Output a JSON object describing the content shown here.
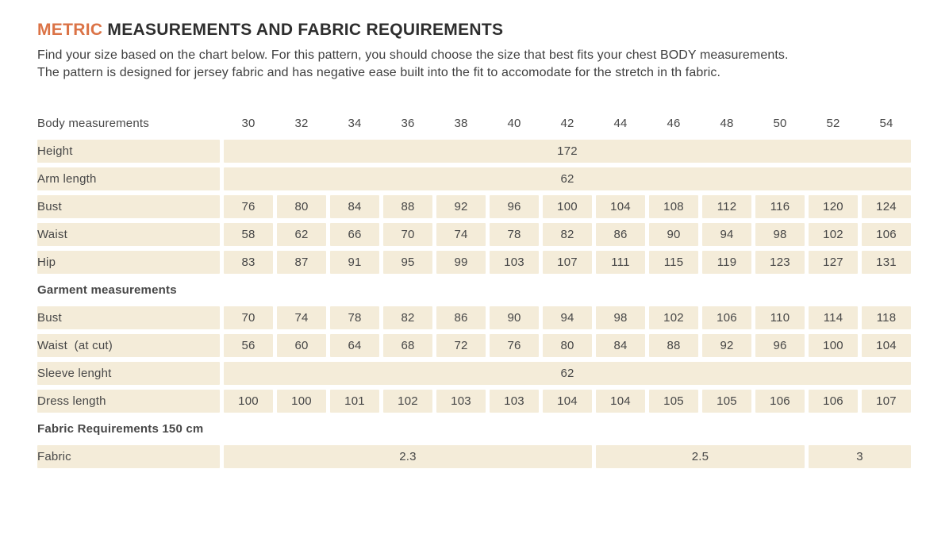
{
  "page": {
    "title": {
      "accent": "METRIC",
      "rest": " MEASUREMENTS AND FABRIC REQUIREMENTS"
    },
    "intro": {
      "line1": "Find your size based on the chart below. For this pattern, you should choose the size that best fits your chest BODY measurements.",
      "line2": "The pattern is designed for jersey fabric and has negative ease built into the fit to accomodate for the stretch in th fabric."
    }
  },
  "colors": {
    "accent_orange": "#db7346",
    "cell_beige": "#f4ecd9",
    "title_ink": "#2e2e2e"
  },
  "table": {
    "size_columns": [
      "30",
      "32",
      "34",
      "36",
      "38",
      "40",
      "42",
      "44",
      "46",
      "48",
      "50",
      "52",
      "54"
    ],
    "rows": [
      {
        "type": "header",
        "label": "Body measurements"
      },
      {
        "type": "span",
        "label": "Height",
        "value": "172"
      },
      {
        "type": "span",
        "label": "Arm length",
        "value": "62"
      },
      {
        "type": "data",
        "label": "Bust",
        "cells": [
          "76",
          "80",
          "84",
          "88",
          "92",
          "96",
          "100",
          "104",
          "108",
          "112",
          "116",
          "120",
          "124"
        ]
      },
      {
        "type": "data",
        "label": "Waist",
        "cells": [
          "58",
          "62",
          "66",
          "70",
          "74",
          "78",
          "82",
          "86",
          "90",
          "94",
          "98",
          "102",
          "106"
        ]
      },
      {
        "type": "data",
        "label": "Hip",
        "cells": [
          "83",
          "87",
          "91",
          "95",
          "99",
          "103",
          "107",
          "111",
          "115",
          "119",
          "123",
          "127",
          "131"
        ]
      },
      {
        "type": "section",
        "label": "Garment measurements"
      },
      {
        "type": "data",
        "label": "Bust",
        "cells": [
          "70",
          "74",
          "78",
          "82",
          "86",
          "90",
          "94",
          "98",
          "102",
          "106",
          "110",
          "114",
          "118"
        ]
      },
      {
        "type": "data",
        "label": "Waist  (at cut)",
        "cells": [
          "56",
          "60",
          "64",
          "68",
          "72",
          "76",
          "80",
          "84",
          "88",
          "92",
          "96",
          "100",
          "104"
        ]
      },
      {
        "type": "span",
        "label": "Sleeve lenght",
        "value": "62"
      },
      {
        "type": "data",
        "label": "Dress length",
        "cells": [
          "100",
          "100",
          "101",
          "102",
          "103",
          "103",
          "104",
          "104",
          "105",
          "105",
          "106",
          "106",
          "107"
        ]
      },
      {
        "type": "section",
        "label": "Fabric Requirements 150 cm"
      },
      {
        "type": "merged",
        "label": "Fabric",
        "cells": [
          {
            "value": "2.3",
            "colspan": 7
          },
          {
            "value": "2.5",
            "colspan": 4
          },
          {
            "value": "3",
            "colspan": 2
          }
        ]
      }
    ]
  }
}
